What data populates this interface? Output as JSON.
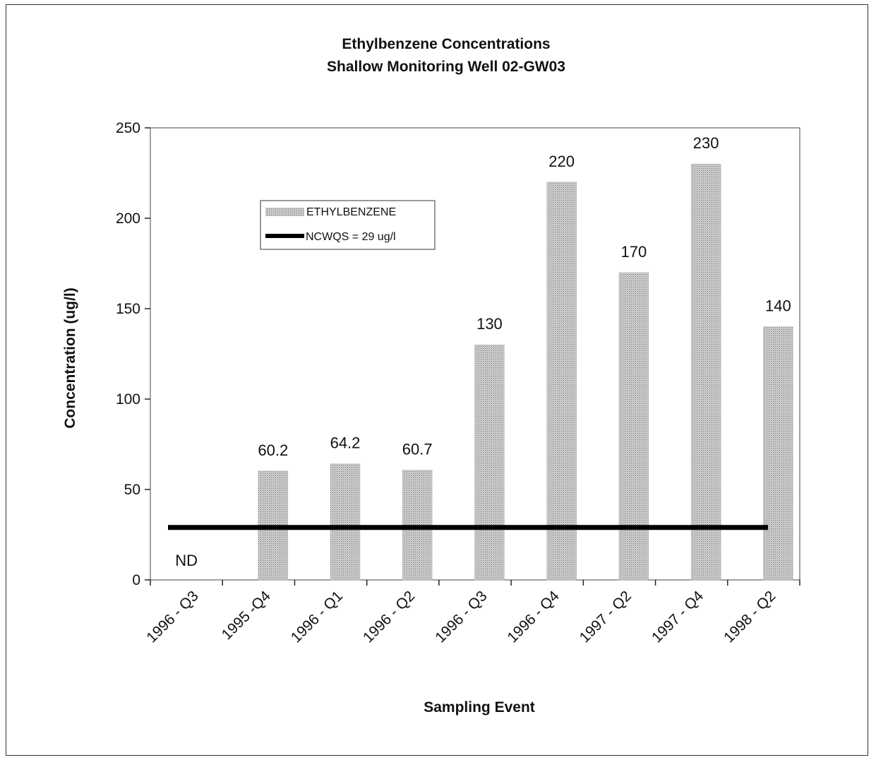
{
  "chart_data": {
    "type": "bar",
    "title": "Ethylbenzene Concentrations",
    "subtitle": "Shallow Monitoring Well 02-GW03",
    "xlabel": "Sampling Event",
    "ylabel": "Concentration (ug/l)",
    "categories": [
      "1996 - Q3",
      "1995 -Q4",
      "1996 - Q1",
      "1996 - Q2",
      "1996 - Q3",
      "1996 - Q4",
      "1997 - Q2",
      "1997 - Q4",
      "1998 - Q2"
    ],
    "series": [
      {
        "name": "ETHYLBENZENE",
        "values": [
          null,
          60.2,
          64.2,
          60.7,
          130,
          220,
          170,
          230,
          140
        ],
        "labels": [
          "ND",
          "60.2",
          "64.2",
          "60.7",
          "130",
          "220",
          "170",
          "230",
          "140"
        ],
        "color": "#b8b8b8"
      }
    ],
    "reference_line": {
      "name": "NCWQS = 29 ug/l",
      "value": 29,
      "color": "#000000"
    },
    "ylim": [
      0,
      250
    ],
    "yticks": [
      "0",
      "50",
      "100",
      "150",
      "200",
      "250"
    ],
    "grid": false,
    "legend_position": "upper-left"
  }
}
